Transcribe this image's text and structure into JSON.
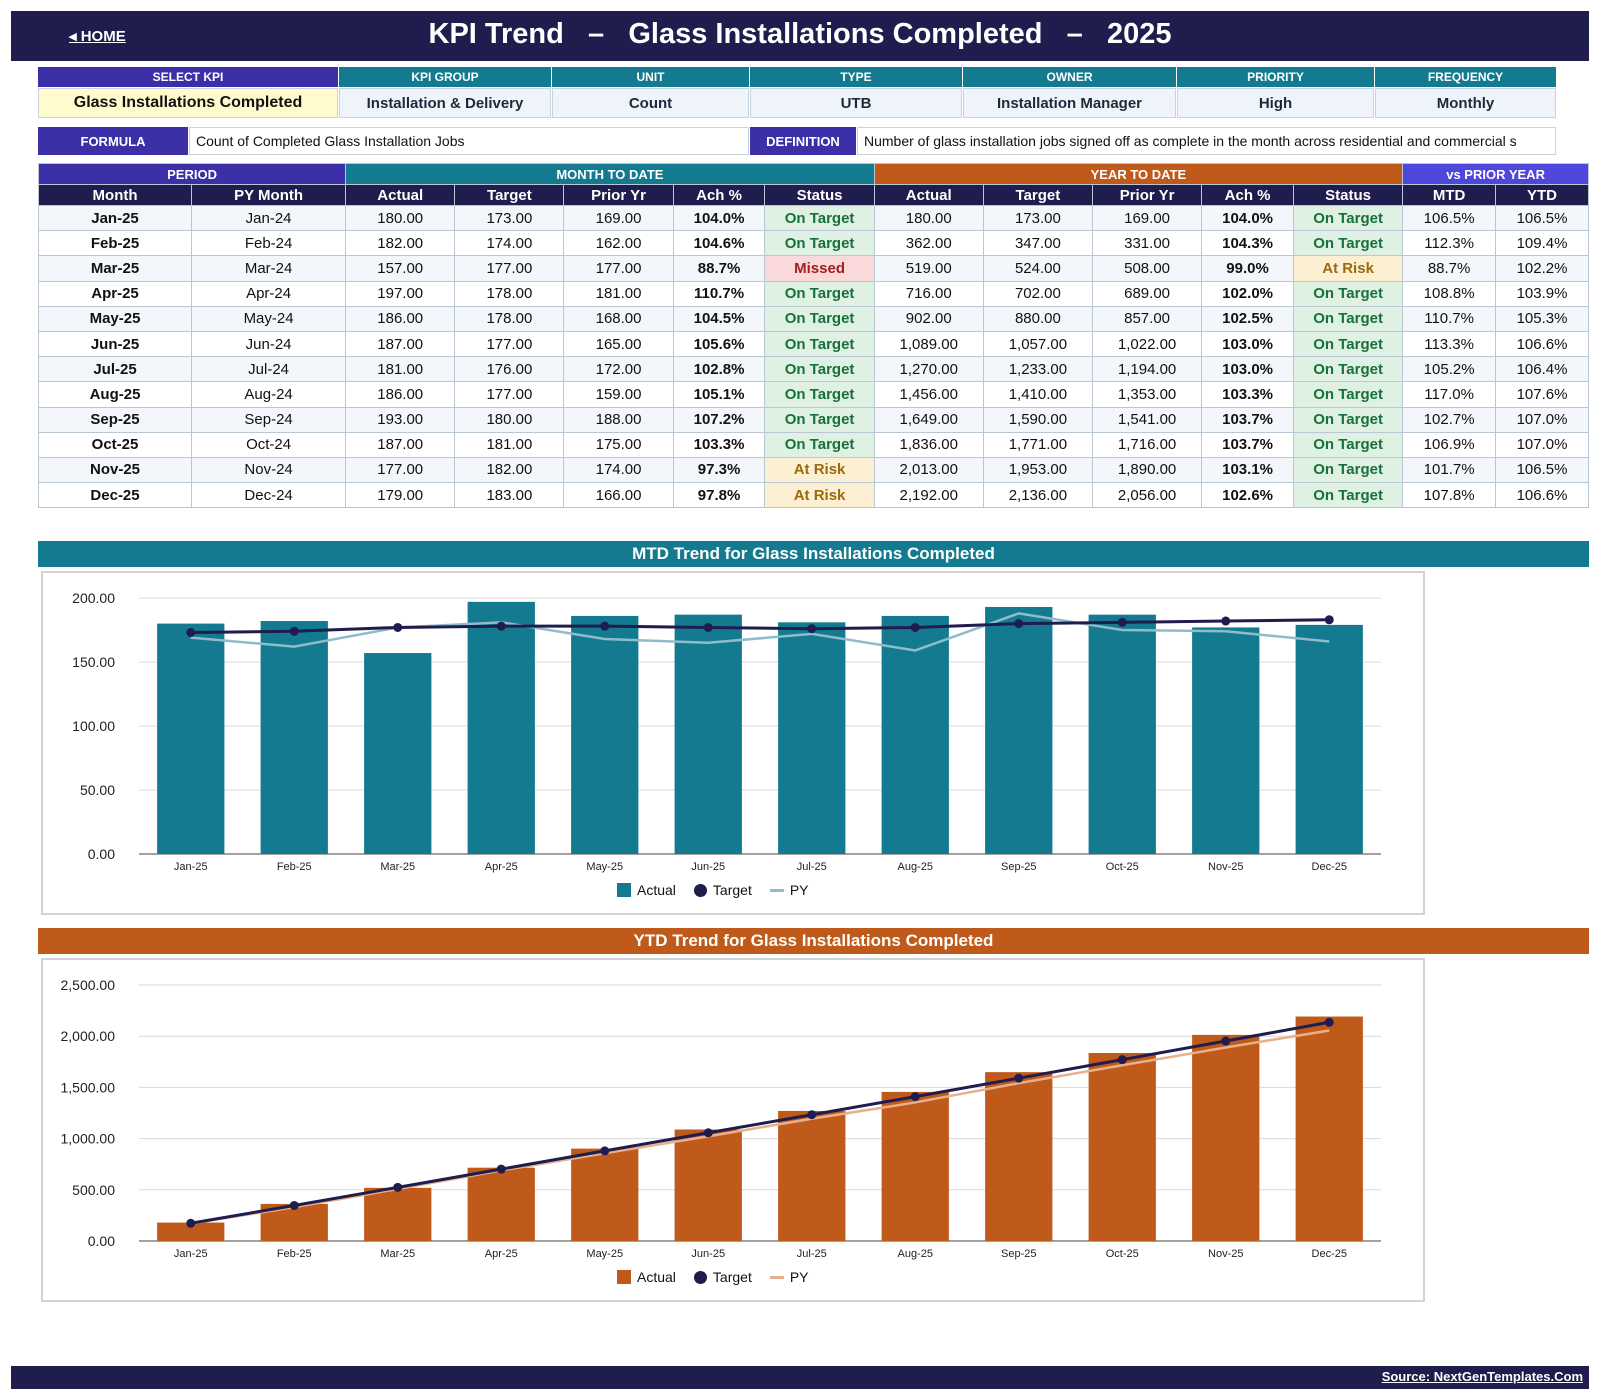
{
  "header": {
    "home_label": "◂ HOME",
    "title": "KPI Trend   –   Glass Installations Completed   –   2025"
  },
  "kpi_info": {
    "select_label": "SELECT KPI",
    "select_value": "Glass Installations Completed",
    "fields": [
      {
        "label": "KPI GROUP",
        "value": "Installation & Delivery"
      },
      {
        "label": "UNIT",
        "value": "Count"
      },
      {
        "label": "TYPE",
        "value": "UTB"
      },
      {
        "label": "OWNER",
        "value": "Installation Manager"
      },
      {
        "label": "PRIORITY",
        "value": "High"
      },
      {
        "label": "FREQUENCY",
        "value": "Monthly"
      }
    ]
  },
  "formula": {
    "label": "FORMULA",
    "text": "Count of Completed Glass Installation Jobs",
    "definition_label": "DEFINITION",
    "definition_text": "Number of glass installation jobs signed off as complete in the month across residential and commercial s"
  },
  "table": {
    "groups": {
      "period": "PERIOD",
      "mtd": "MONTH TO DATE",
      "ytd": "YEAR TO DATE",
      "py": "vs PRIOR YEAR"
    },
    "columns": [
      "Month",
      "PY Month",
      "Actual",
      "Target",
      "Prior Yr",
      "Ach %",
      "Status",
      "Actual",
      "Target",
      "Prior Yr",
      "Ach %",
      "Status",
      "MTD",
      "YTD"
    ],
    "rows": [
      [
        "Jan-25",
        "Jan-24",
        "180.00",
        "173.00",
        "169.00",
        "104.0%",
        "On Target",
        "180.00",
        "173.00",
        "169.00",
        "104.0%",
        "On Target",
        "106.5%",
        "106.5%"
      ],
      [
        "Feb-25",
        "Feb-24",
        "182.00",
        "174.00",
        "162.00",
        "104.6%",
        "On Target",
        "362.00",
        "347.00",
        "331.00",
        "104.3%",
        "On Target",
        "112.3%",
        "109.4%"
      ],
      [
        "Mar-25",
        "Mar-24",
        "157.00",
        "177.00",
        "177.00",
        "88.7%",
        "Missed",
        "519.00",
        "524.00",
        "508.00",
        "99.0%",
        "At Risk",
        "88.7%",
        "102.2%"
      ],
      [
        "Apr-25",
        "Apr-24",
        "197.00",
        "178.00",
        "181.00",
        "110.7%",
        "On Target",
        "716.00",
        "702.00",
        "689.00",
        "102.0%",
        "On Target",
        "108.8%",
        "103.9%"
      ],
      [
        "May-25",
        "May-24",
        "186.00",
        "178.00",
        "168.00",
        "104.5%",
        "On Target",
        "902.00",
        "880.00",
        "857.00",
        "102.5%",
        "On Target",
        "110.7%",
        "105.3%"
      ],
      [
        "Jun-25",
        "Jun-24",
        "187.00",
        "177.00",
        "165.00",
        "105.6%",
        "On Target",
        "1,089.00",
        "1,057.00",
        "1,022.00",
        "103.0%",
        "On Target",
        "113.3%",
        "106.6%"
      ],
      [
        "Jul-25",
        "Jul-24",
        "181.00",
        "176.00",
        "172.00",
        "102.8%",
        "On Target",
        "1,270.00",
        "1,233.00",
        "1,194.00",
        "103.0%",
        "On Target",
        "105.2%",
        "106.4%"
      ],
      [
        "Aug-25",
        "Aug-24",
        "186.00",
        "177.00",
        "159.00",
        "105.1%",
        "On Target",
        "1,456.00",
        "1,410.00",
        "1,353.00",
        "103.3%",
        "On Target",
        "117.0%",
        "107.6%"
      ],
      [
        "Sep-25",
        "Sep-24",
        "193.00",
        "180.00",
        "188.00",
        "107.2%",
        "On Target",
        "1,649.00",
        "1,590.00",
        "1,541.00",
        "103.7%",
        "On Target",
        "102.7%",
        "107.0%"
      ],
      [
        "Oct-25",
        "Oct-24",
        "187.00",
        "181.00",
        "175.00",
        "103.3%",
        "On Target",
        "1,836.00",
        "1,771.00",
        "1,716.00",
        "103.7%",
        "On Target",
        "106.9%",
        "107.0%"
      ],
      [
        "Nov-25",
        "Nov-24",
        "177.00",
        "182.00",
        "174.00",
        "97.3%",
        "At Risk",
        "2,013.00",
        "1,953.00",
        "1,890.00",
        "103.1%",
        "On Target",
        "101.7%",
        "106.5%"
      ],
      [
        "Dec-25",
        "Dec-24",
        "179.00",
        "183.00",
        "166.00",
        "97.8%",
        "At Risk",
        "2,192.00",
        "2,136.00",
        "2,056.00",
        "102.6%",
        "On Target",
        "107.8%",
        "106.6%"
      ]
    ]
  },
  "colors": {
    "navy": "#1f1d4d",
    "purple": "#3b30a8",
    "teal": "#137a8f",
    "orange": "#c05a1a",
    "py_mtd": "#8fbccc",
    "py_ytd": "#e8b08a"
  },
  "chart_data": [
    {
      "type": "bar",
      "title": "MTD Trend for Glass Installations Completed",
      "categories": [
        "Jan-25",
        "Feb-25",
        "Mar-25",
        "Apr-25",
        "May-25",
        "Jun-25",
        "Jul-25",
        "Aug-25",
        "Sep-25",
        "Oct-25",
        "Nov-25",
        "Dec-25"
      ],
      "series": [
        {
          "name": "Actual",
          "kind": "bar",
          "values": [
            180,
            182,
            157,
            197,
            186,
            187,
            181,
            186,
            193,
            187,
            177,
            179
          ]
        },
        {
          "name": "Target",
          "kind": "line-markers",
          "values": [
            173,
            174,
            177,
            178,
            178,
            177,
            176,
            177,
            180,
            181,
            182,
            183
          ]
        },
        {
          "name": "PY",
          "kind": "line",
          "values": [
            169,
            162,
            177,
            181,
            168,
            165,
            172,
            159,
            188,
            175,
            174,
            166
          ]
        }
      ],
      "ylim": [
        0,
        200
      ],
      "yticks": [
        "0.00",
        "50.00",
        "100.00",
        "150.00",
        "200.00"
      ],
      "grid": true,
      "legend": "bottom"
    },
    {
      "type": "bar",
      "title": "YTD Trend for Glass Installations Completed",
      "categories": [
        "Jan-25",
        "Feb-25",
        "Mar-25",
        "Apr-25",
        "May-25",
        "Jun-25",
        "Jul-25",
        "Aug-25",
        "Sep-25",
        "Oct-25",
        "Nov-25",
        "Dec-25"
      ],
      "series": [
        {
          "name": "Actual",
          "kind": "bar",
          "values": [
            180,
            362,
            519,
            716,
            902,
            1089,
            1270,
            1456,
            1649,
            1836,
            2013,
            2192
          ]
        },
        {
          "name": "Target",
          "kind": "line-markers",
          "values": [
            173,
            347,
            524,
            702,
            880,
            1057,
            1233,
            1410,
            1590,
            1771,
            1953,
            2136
          ]
        },
        {
          "name": "PY",
          "kind": "line",
          "values": [
            169,
            331,
            508,
            689,
            857,
            1022,
            1194,
            1353,
            1541,
            1716,
            1890,
            2056
          ]
        }
      ],
      "ylim": [
        0,
        2500
      ],
      "yticks": [
        "0.00",
        "500.00",
        "1,000.00",
        "1,500.00",
        "2,000.00",
        "2,500.00"
      ],
      "grid": true,
      "legend": "bottom"
    }
  ],
  "footer": {
    "source": "Source: NextGenTemplates.Com"
  }
}
